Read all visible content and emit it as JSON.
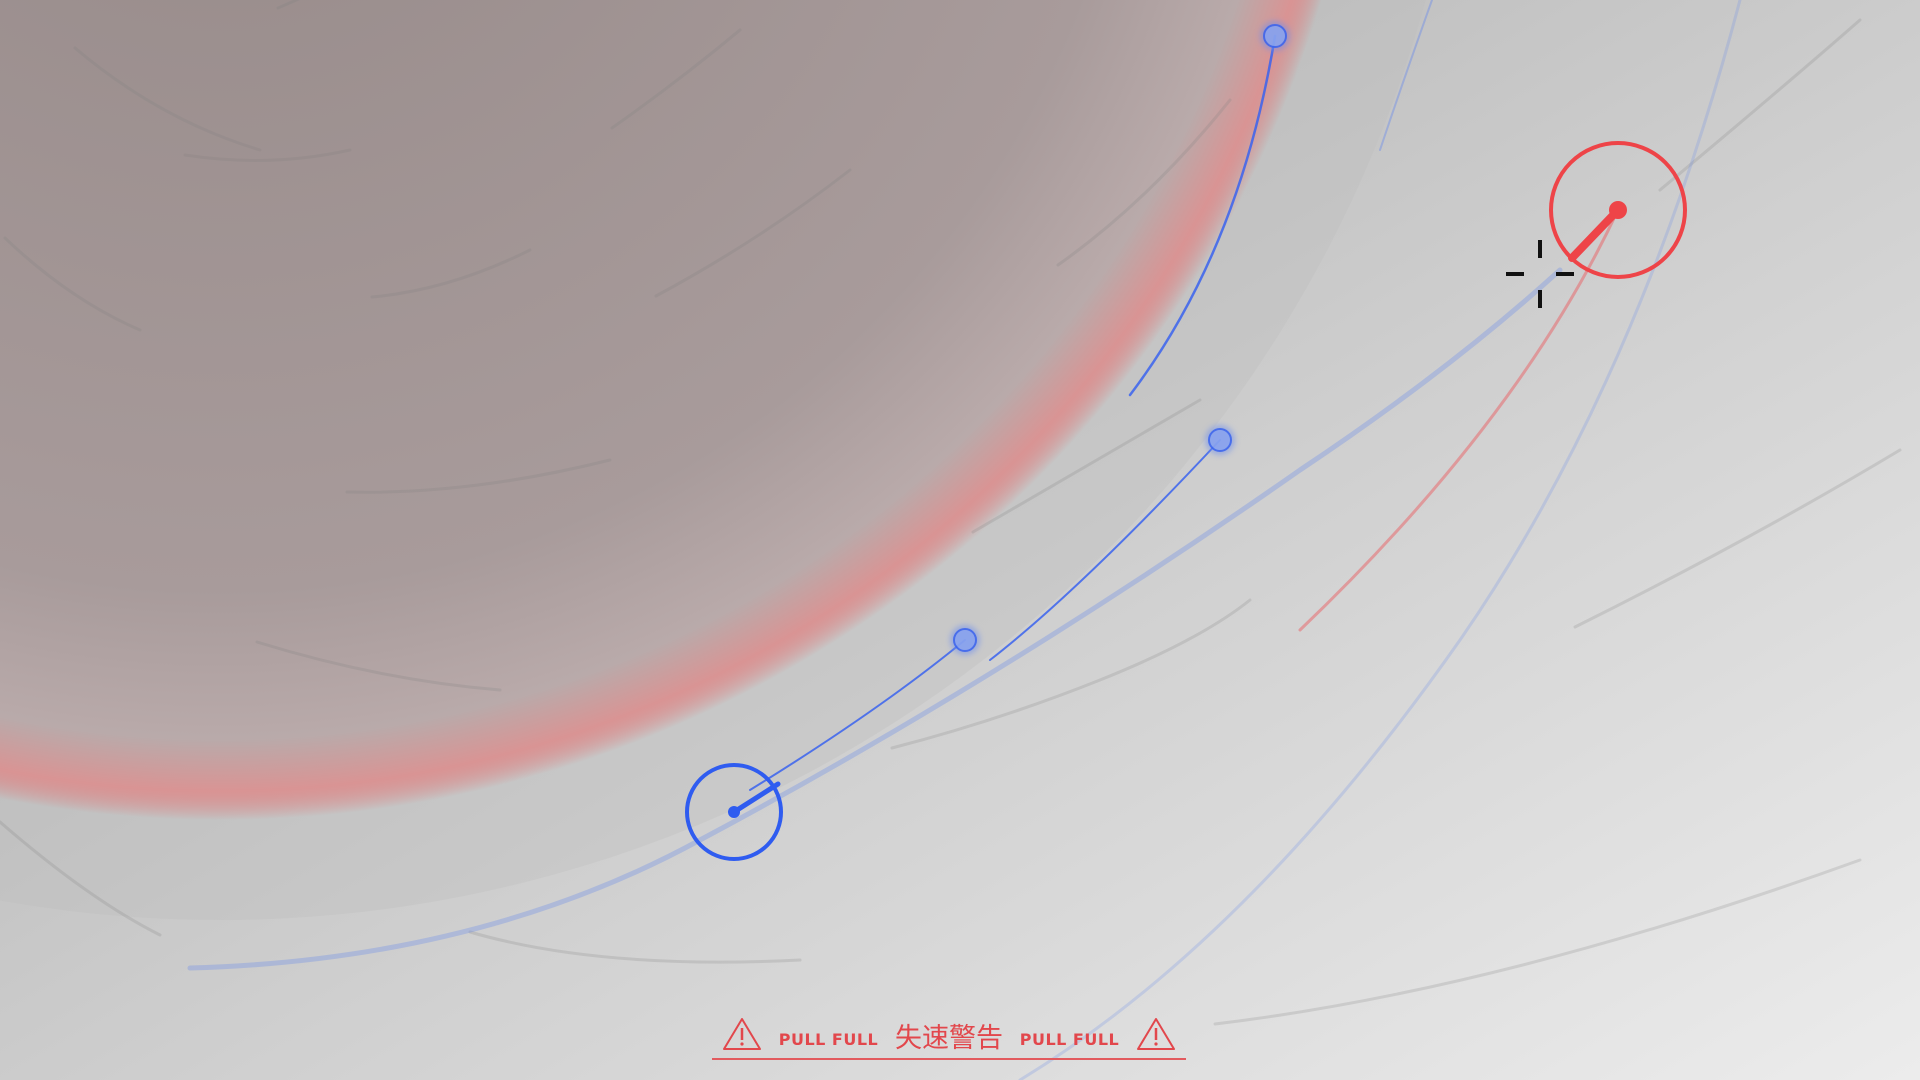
{
  "warning": {
    "left_text": "PULL FULL",
    "center_text": "失速警告",
    "right_text": "PULL FULL"
  },
  "colors": {
    "player": "#2f5cf0",
    "enemy": "#ee4448",
    "planet_core": "#9a8c8c",
    "planet_rim": "#e07070",
    "sky": "#dcdcdc",
    "warning": "#e2474c",
    "reticle": "#111111"
  },
  "icons": {
    "warning_left": "warning-triangle-icon",
    "warning_right": "warning-triangle-icon",
    "aim_reticle": "crosshair-icon"
  }
}
